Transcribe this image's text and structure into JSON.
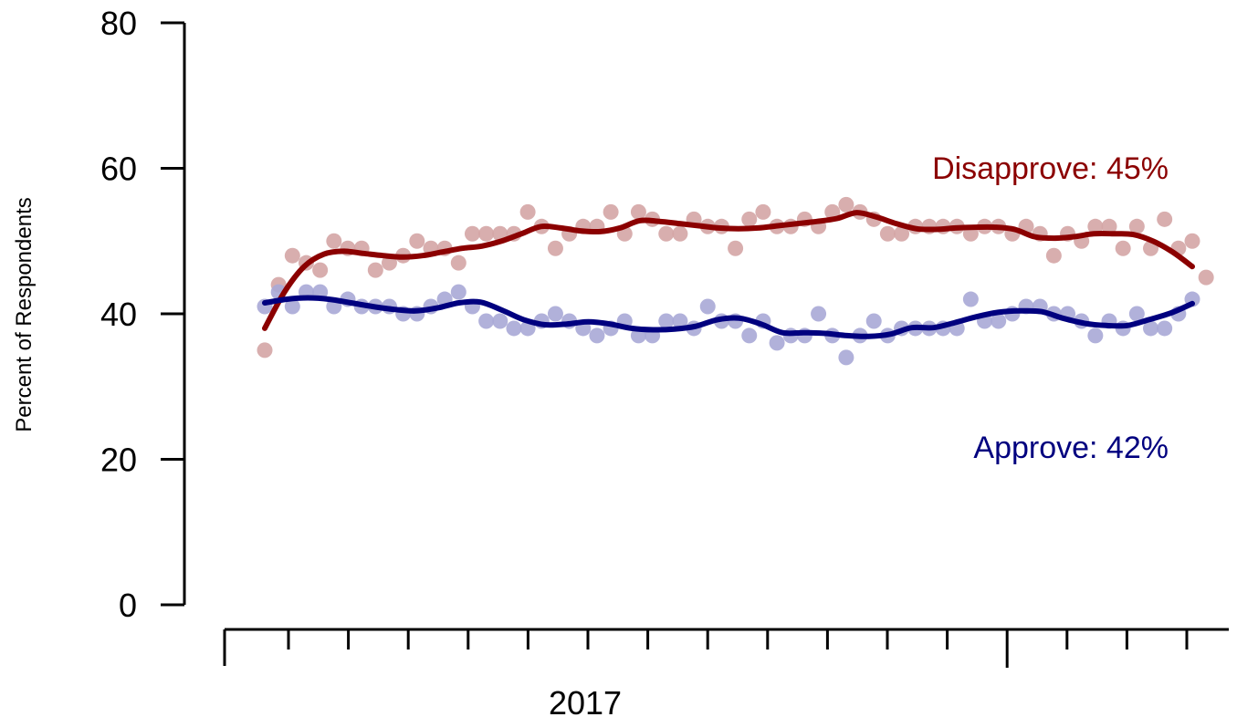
{
  "chart_data": {
    "type": "scatter",
    "ylabel": "Percent of Respondents",
    "xlabel": "",
    "ylim": [
      0,
      80
    ],
    "yticks": [
      0,
      20,
      40,
      60,
      80
    ],
    "x_axis": {
      "year_label": "2017",
      "minor_ticks": 15,
      "major_tick_index": 12,
      "xlim": [
        0,
        67
      ]
    },
    "grid": false,
    "colors": {
      "disapprove": "#8B0000",
      "approve": "#00007F",
      "disapprove_points": "#D4A5A5",
      "approve_points": "#A9A9D6"
    },
    "series": [
      {
        "key": "disapprove",
        "label": "Disapprove: 45%",
        "points": [
          [
            0,
            35
          ],
          [
            1,
            44
          ],
          [
            2,
            48
          ],
          [
            3,
            47
          ],
          [
            4,
            46
          ],
          [
            5,
            50
          ],
          [
            6,
            49
          ],
          [
            7,
            49
          ],
          [
            8,
            46
          ],
          [
            9,
            47
          ],
          [
            10,
            48
          ],
          [
            11,
            50
          ],
          [
            12,
            49
          ],
          [
            13,
            49
          ],
          [
            14,
            47
          ],
          [
            15,
            51
          ],
          [
            16,
            51
          ],
          [
            17,
            51
          ],
          [
            18,
            51
          ],
          [
            19,
            54
          ],
          [
            20,
            52
          ],
          [
            21,
            49
          ],
          [
            22,
            51
          ],
          [
            23,
            52
          ],
          [
            24,
            52
          ],
          [
            25,
            54
          ],
          [
            26,
            51
          ],
          [
            27,
            54
          ],
          [
            28,
            53
          ],
          [
            29,
            51
          ],
          [
            30,
            51
          ],
          [
            31,
            53
          ],
          [
            32,
            52
          ],
          [
            33,
            52
          ],
          [
            34,
            49
          ],
          [
            35,
            53
          ],
          [
            36,
            54
          ],
          [
            37,
            52
          ],
          [
            38,
            52
          ],
          [
            39,
            53
          ],
          [
            40,
            52
          ],
          [
            41,
            54
          ],
          [
            42,
            55
          ],
          [
            43,
            54
          ],
          [
            44,
            53
          ],
          [
            45,
            51
          ],
          [
            46,
            51
          ],
          [
            47,
            52
          ],
          [
            48,
            52
          ],
          [
            49,
            52
          ],
          [
            50,
            52
          ],
          [
            51,
            51
          ],
          [
            52,
            52
          ],
          [
            53,
            52
          ],
          [
            54,
            51
          ],
          [
            55,
            52
          ],
          [
            56,
            51
          ],
          [
            57,
            48
          ],
          [
            58,
            51
          ],
          [
            59,
            50
          ],
          [
            60,
            52
          ],
          [
            61,
            52
          ],
          [
            62,
            49
          ],
          [
            63,
            52
          ],
          [
            64,
            49
          ],
          [
            65,
            53
          ],
          [
            66,
            49
          ],
          [
            67,
            50
          ],
          [
            68,
            45
          ]
        ],
        "trend": [
          [
            0,
            38
          ],
          [
            1,
            43
          ],
          [
            2,
            46.5
          ],
          [
            3,
            48.2
          ],
          [
            4,
            48.6
          ],
          [
            5,
            48.3
          ],
          [
            6,
            48
          ],
          [
            7,
            47.8
          ],
          [
            8,
            48
          ],
          [
            9,
            48.5
          ],
          [
            10,
            49
          ],
          [
            11,
            49.3
          ],
          [
            12,
            50
          ],
          [
            13,
            51
          ],
          [
            14,
            52
          ],
          [
            15,
            51.8
          ],
          [
            16,
            51.4
          ],
          [
            17,
            51.3
          ],
          [
            18,
            51.8
          ],
          [
            19,
            52.8
          ],
          [
            20,
            52.7
          ],
          [
            21,
            52.4
          ],
          [
            22,
            52.1
          ],
          [
            23,
            51.8
          ],
          [
            24,
            51.7
          ],
          [
            25,
            51.8
          ],
          [
            26,
            52.1
          ],
          [
            27,
            52.4
          ],
          [
            28,
            52.7
          ],
          [
            29,
            53.1
          ],
          [
            30,
            53.9
          ],
          [
            31,
            53.3
          ],
          [
            32,
            52.4
          ],
          [
            33,
            51.7
          ],
          [
            34,
            51.6
          ],
          [
            35,
            51.8
          ],
          [
            36,
            51.9
          ],
          [
            37,
            51.9
          ],
          [
            38,
            51.6
          ],
          [
            39,
            50.6
          ],
          [
            40,
            50.4
          ],
          [
            41,
            50.6
          ],
          [
            42,
            51
          ],
          [
            43,
            51
          ],
          [
            44,
            50.9
          ],
          [
            45,
            50
          ],
          [
            46,
            48.5
          ],
          [
            47,
            46.5
          ]
        ]
      },
      {
        "key": "approve",
        "label": "Approve: 42%",
        "points": [
          [
            0,
            41
          ],
          [
            1,
            43
          ],
          [
            2,
            41
          ],
          [
            3,
            43
          ],
          [
            4,
            43
          ],
          [
            5,
            41
          ],
          [
            6,
            42
          ],
          [
            7,
            41
          ],
          [
            8,
            41
          ],
          [
            9,
            41
          ],
          [
            10,
            40
          ],
          [
            11,
            40
          ],
          [
            12,
            41
          ],
          [
            13,
            42
          ],
          [
            14,
            43
          ],
          [
            15,
            41
          ],
          [
            16,
            39
          ],
          [
            17,
            39
          ],
          [
            18,
            38
          ],
          [
            19,
            38
          ],
          [
            20,
            39
          ],
          [
            21,
            40
          ],
          [
            22,
            39
          ],
          [
            23,
            38
          ],
          [
            24,
            37
          ],
          [
            25,
            38
          ],
          [
            26,
            39
          ],
          [
            27,
            37
          ],
          [
            28,
            37
          ],
          [
            29,
            39
          ],
          [
            30,
            39
          ],
          [
            31,
            38
          ],
          [
            32,
            41
          ],
          [
            33,
            39
          ],
          [
            34,
            39
          ],
          [
            35,
            37
          ],
          [
            36,
            39
          ],
          [
            37,
            36
          ],
          [
            38,
            37
          ],
          [
            39,
            37
          ],
          [
            40,
            40
          ],
          [
            41,
            37
          ],
          [
            42,
            34
          ],
          [
            43,
            37
          ],
          [
            44,
            39
          ],
          [
            45,
            37
          ],
          [
            46,
            38
          ],
          [
            47,
            38
          ],
          [
            48,
            38
          ],
          [
            49,
            38
          ],
          [
            50,
            38
          ],
          [
            51,
            42
          ],
          [
            52,
            39
          ],
          [
            53,
            39
          ],
          [
            54,
            40
          ],
          [
            55,
            41
          ],
          [
            56,
            41
          ],
          [
            57,
            40
          ],
          [
            58,
            40
          ],
          [
            59,
            39
          ],
          [
            60,
            37
          ],
          [
            61,
            39
          ],
          [
            62,
            38
          ],
          [
            63,
            40
          ],
          [
            64,
            38
          ],
          [
            65,
            38
          ],
          [
            66,
            40
          ],
          [
            67,
            42
          ]
        ],
        "trend": [
          [
            0,
            41.5
          ],
          [
            1,
            42
          ],
          [
            2,
            42.2
          ],
          [
            3,
            42
          ],
          [
            4,
            41.5
          ],
          [
            5,
            41
          ],
          [
            6,
            40.6
          ],
          [
            7,
            40.4
          ],
          [
            8,
            40.8
          ],
          [
            9,
            41.5
          ],
          [
            10,
            41.6
          ],
          [
            11,
            40.5
          ],
          [
            12,
            39.2
          ],
          [
            13,
            38.5
          ],
          [
            14,
            38.6
          ],
          [
            15,
            38.9
          ],
          [
            16,
            38.6
          ],
          [
            17,
            38
          ],
          [
            18,
            37.8
          ],
          [
            19,
            37.9
          ],
          [
            20,
            38.3
          ],
          [
            21,
            39.2
          ],
          [
            22,
            39.4
          ],
          [
            23,
            38.6
          ],
          [
            24,
            37.4
          ],
          [
            25,
            37.4
          ],
          [
            26,
            37.3
          ],
          [
            27,
            37
          ],
          [
            28,
            36.9
          ],
          [
            29,
            37.2
          ],
          [
            30,
            38.1
          ],
          [
            31,
            38.1
          ],
          [
            32,
            38.8
          ],
          [
            33,
            39.6
          ],
          [
            34,
            40.2
          ],
          [
            35,
            40.4
          ],
          [
            36,
            40.3
          ],
          [
            37,
            39.4
          ],
          [
            38,
            38.7
          ],
          [
            39,
            38.4
          ],
          [
            40,
            38.4
          ],
          [
            41,
            39.2
          ],
          [
            42,
            40.1
          ],
          [
            43,
            41.4
          ]
        ]
      }
    ]
  }
}
